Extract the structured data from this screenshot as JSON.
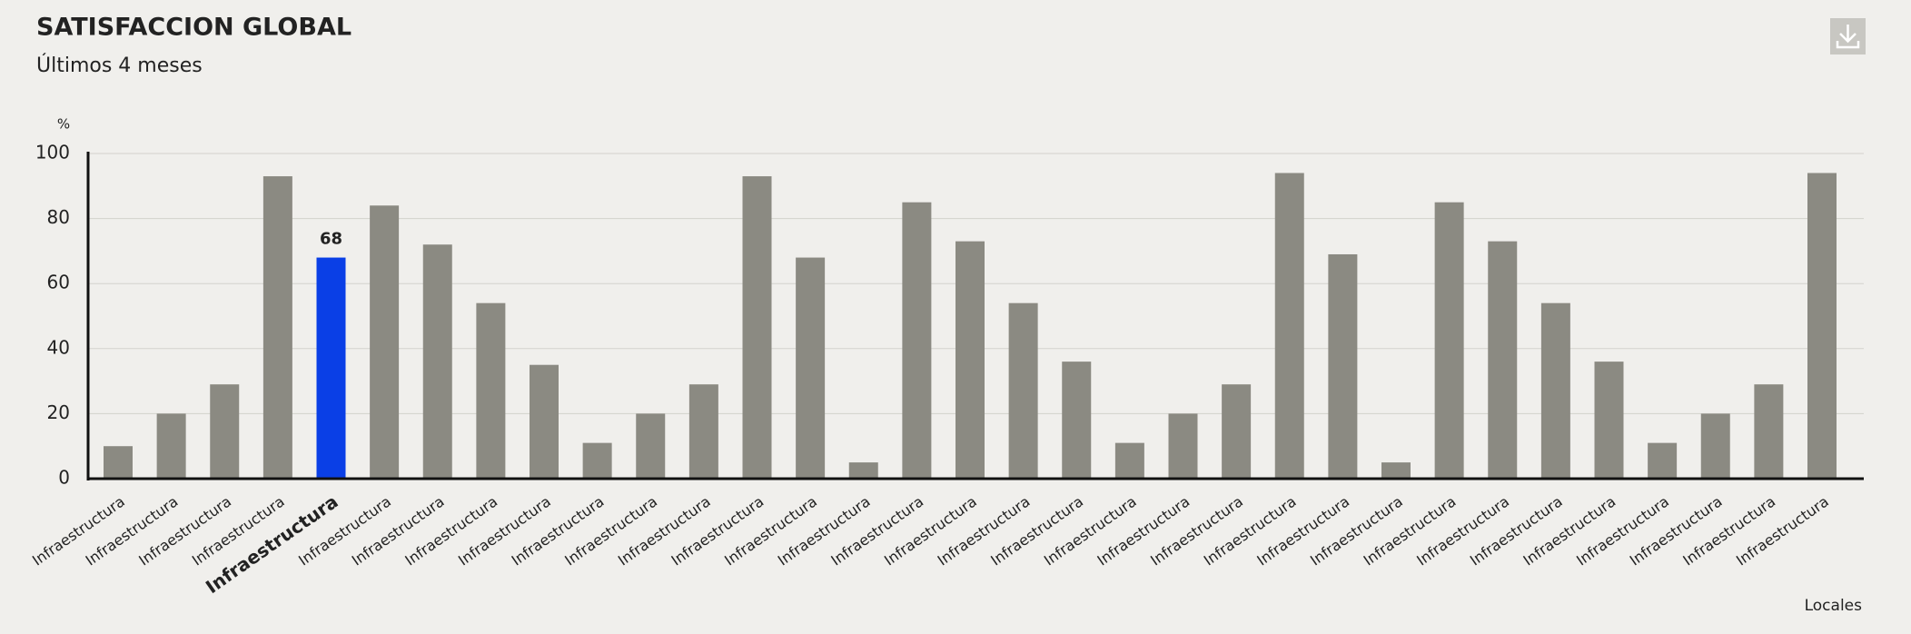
{
  "chart_data": {
    "type": "bar",
    "title": "SATISFACCION GLOBAL",
    "subtitle": "Últimos 4 meses",
    "y_label": "%",
    "x_label": "Locales",
    "categories": [
      "Infraestructura",
      "Infraestructura",
      "Infraestructura",
      "Infraestructura",
      "Infraestructura",
      "Infraestructura",
      "Infraestructura",
      "Infraestructura",
      "Infraestructura",
      "Infraestructura",
      "Infraestructura",
      "Infraestructura",
      "Infraestructura",
      "Infraestructura",
      "Infraestructura",
      "Infraestructura",
      "Infraestructura",
      "Infraestructura",
      "Infraestructura",
      "Infraestructura",
      "Infraestructura",
      "Infraestructura",
      "Infraestructura",
      "Infraestructura",
      "Infraestructura",
      "Infraestructura",
      "Infraestructura",
      "Infraestructura",
      "Infraestructura",
      "Infraestructura",
      "Infraestructura",
      "Infraestructura",
      "Infraestructura"
    ],
    "values": [
      10,
      20,
      29,
      93,
      68,
      84,
      72,
      54,
      35,
      11,
      20,
      29,
      93,
      68,
      5,
      85,
      73,
      54,
      36,
      11,
      20,
      29,
      94,
      69,
      5,
      85,
      73,
      54,
      36,
      11,
      20,
      29,
      94
    ],
    "color": "#8b8a82",
    "highlight_index": 4,
    "highlight_color": "#0a3fe6",
    "ylim": [
      0,
      100
    ],
    "yticks": [
      0,
      20,
      40,
      60,
      80,
      100
    ],
    "grid": true
  }
}
